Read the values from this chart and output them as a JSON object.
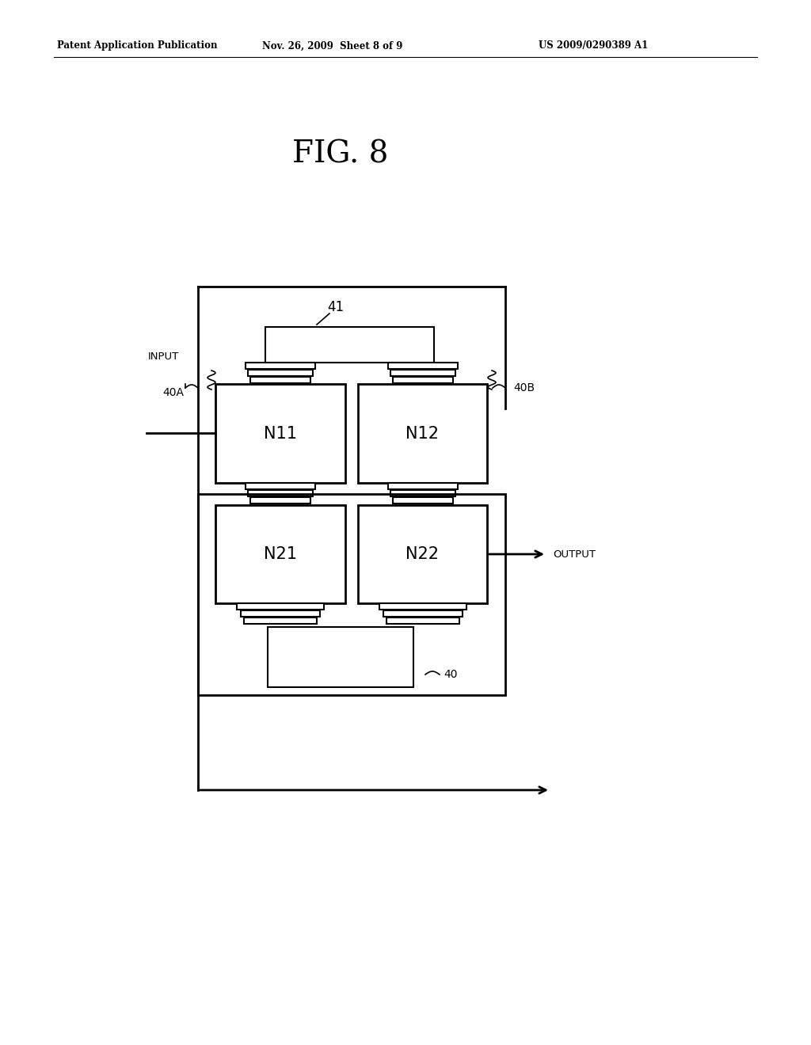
{
  "title": "FIG. 8",
  "header_left": "Patent Application Publication",
  "header_center": "Nov. 26, 2009  Sheet 8 of 9",
  "header_right": "US 2009/0290389 A1",
  "bg_color": "#ffffff",
  "fg_color": "#000000",
  "label_41": "41",
  "label_40A": "40A",
  "label_40B": "40B",
  "label_40": "40",
  "label_N11": "N11",
  "label_N12": "N12",
  "label_N21": "N21",
  "label_N22": "N22",
  "label_INPUT": "INPUT",
  "label_OUTPUT": "OUTPUT"
}
